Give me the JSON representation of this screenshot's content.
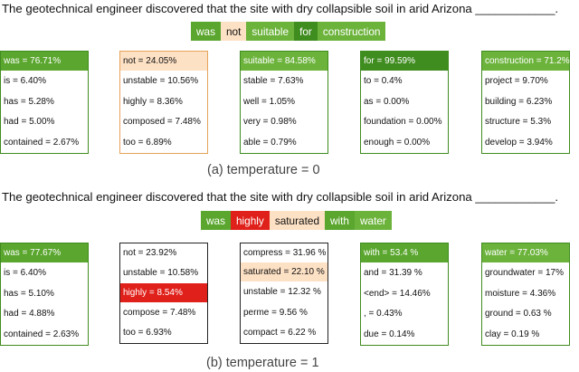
{
  "panel_a": {
    "prompt": "The geotechnical engineer discovered that the site with dry collapsible soil in arid Arizona ____________.",
    "tokens": [
      {
        "text": "was",
        "bg": "#5aa62e",
        "fg": "#ffffff"
      },
      {
        "text": "not",
        "bg": "#fde1c5",
        "fg": "#111111"
      },
      {
        "text": "suitable",
        "bg": "#6cb33c",
        "fg": "#ffffff"
      },
      {
        "text": "for",
        "bg": "#3f8c1f",
        "fg": "#ffffff"
      },
      {
        "text": "construction",
        "bg": "#6cb33c",
        "fg": "#ffffff"
      }
    ],
    "cards": [
      {
        "border": "green",
        "head": {
          "text": "was = 76.71%",
          "bg": "#5aa62e",
          "fg": "#ffffff"
        },
        "rows": [
          {
            "text": "is = 6.40%"
          },
          {
            "text": "has = 5.28%"
          },
          {
            "text": "had = 5.00%"
          },
          {
            "text": "contained = 2.67%"
          }
        ]
      },
      {
        "border": "peach",
        "head": {
          "text": "not = 24.05%",
          "bg": "#fde1c5",
          "fg": "#111111"
        },
        "rows": [
          {
            "text": "unstable = 10.56%"
          },
          {
            "text": "highly = 8.36%"
          },
          {
            "text": "composed = 7.48%"
          },
          {
            "text": "too = 6.89%"
          }
        ]
      },
      {
        "border": "green",
        "head": {
          "text": "suitable = 84.58%",
          "bg": "#6cb33c",
          "fg": "#ffffff"
        },
        "rows": [
          {
            "text": "stable = 7.63%"
          },
          {
            "text": "well = 1.05%"
          },
          {
            "text": "very = 0.98%"
          },
          {
            "text": "able = 0.79%"
          }
        ]
      },
      {
        "border": "green",
        "head": {
          "text": "for = 99.59%",
          "bg": "#3f8c1f",
          "fg": "#ffffff"
        },
        "rows": [
          {
            "text": "to = 0.4%"
          },
          {
            "text": "as = 0.00%"
          },
          {
            "text": "foundation = 0.00%"
          },
          {
            "text": "enough = 0.00%"
          }
        ]
      },
      {
        "border": "green",
        "head": {
          "text": "construction = 71.2%",
          "bg": "#6cb33c",
          "fg": "#ffffff"
        },
        "rows": [
          {
            "text": "project = 9.70%"
          },
          {
            "text": "building = 6.23%"
          },
          {
            "text": "structure = 5.3%"
          },
          {
            "text": "develop = 3.94%"
          }
        ]
      }
    ],
    "caption": "(a) temperature = 0"
  },
  "panel_b": {
    "prompt": "The geotechnical engineer discovered that the site with dry collapsible soil in arid Arizona ____________.",
    "tokens": [
      {
        "text": "was",
        "bg": "#5aa62e",
        "fg": "#ffffff"
      },
      {
        "text": "highly",
        "bg": "#e0201a",
        "fg": "#ffffff"
      },
      {
        "text": "saturated",
        "bg": "#fde1c5",
        "fg": "#111111"
      },
      {
        "text": "with",
        "bg": "#5aa62e",
        "fg": "#ffffff"
      },
      {
        "text": "water",
        "bg": "#6cb33c",
        "fg": "#ffffff"
      }
    ],
    "cards": [
      {
        "border": "green",
        "head": {
          "text": "was = 77.67%",
          "bg": "#5aa62e",
          "fg": "#ffffff"
        },
        "rows": [
          {
            "text": "is = 6.40%"
          },
          {
            "text": "has = 5.10%"
          },
          {
            "text": "had = 4.88%"
          },
          {
            "text": "contained = 2.63%"
          }
        ]
      },
      {
        "border": "black",
        "head": {
          "text": "not = 23.92%",
          "bg": "#ffffff",
          "fg": "#111111"
        },
        "rows": [
          {
            "text": "unstable = 10.58%"
          },
          {
            "text": "highly = 8.54%",
            "bg": "#e0201a",
            "fg": "#ffffff"
          },
          {
            "text": "compose = 7.48%"
          },
          {
            "text": "too = 6.93%"
          }
        ]
      },
      {
        "border": "black",
        "head": {
          "text": "compress = 31.96 %",
          "bg": "#ffffff",
          "fg": "#111111"
        },
        "rows": [
          {
            "text": "saturated = 22.10 %",
            "bg": "#fde1c5",
            "fg": "#111111"
          },
          {
            "text": "unstable = 12.32 %"
          },
          {
            "text": "perme = 9.56 %"
          },
          {
            "text": "compact = 6.22 %"
          }
        ]
      },
      {
        "border": "green",
        "head": {
          "text": "with = 53.4 %",
          "bg": "#5aa62e",
          "fg": "#ffffff"
        },
        "rows": [
          {
            "text": "and = 31.39 %"
          },
          {
            "text": "<end> = 14.46%"
          },
          {
            "text": ", = 0.43%"
          },
          {
            "text": "due = 0.14%"
          }
        ]
      },
      {
        "border": "green",
        "head": {
          "text": "water = 77.03%",
          "bg": "#6cb33c",
          "fg": "#ffffff"
        },
        "rows": [
          {
            "text": "groundwater = 17%"
          },
          {
            "text": "moisture = 4.36%"
          },
          {
            "text": "ground = 0.63 %"
          },
          {
            "text": "clay = 0.19 %"
          }
        ]
      }
    ],
    "caption": "(b) temperature = 1"
  }
}
